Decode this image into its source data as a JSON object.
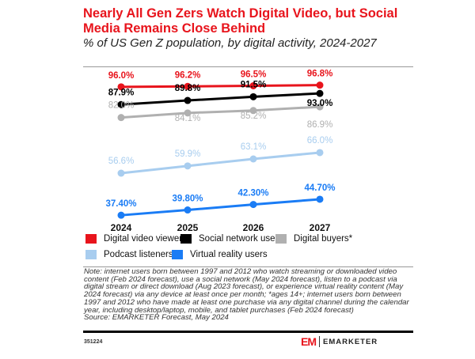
{
  "title": "Nearly All Gen Zers Watch Digital Video, but Social Media Remains Close Behind",
  "subtitle": "% of US Gen Z population, by digital activity, 2024-2027",
  "chart_data": {
    "type": "line",
    "categories": [
      "2024",
      "2025",
      "2026",
      "2027"
    ],
    "series": [
      {
        "name": "Digital video viewers",
        "color": "#e8141c",
        "values": [
          96.0,
          96.2,
          96.5,
          96.8
        ],
        "labels": [
          "96.0%",
          "96.2%",
          "96.5%",
          "96.8%"
        ]
      },
      {
        "name": "Social network users",
        "color": "#000000",
        "values": [
          87.9,
          89.8,
          91.5,
          93.0
        ],
        "labels": [
          "87.9%",
          "89.8%",
          "91.5%",
          "93.0%"
        ]
      },
      {
        "name": "Digital buyers*",
        "color": "#b0b0b0",
        "values": [
          82.0,
          84.1,
          85.2,
          86.9
        ],
        "labels": [
          "82.0%",
          "84.1%",
          "85.2%",
          "86.9%"
        ]
      },
      {
        "name": "Podcast listeners",
        "color": "#a8cdef",
        "values": [
          56.6,
          59.9,
          63.1,
          66.0
        ],
        "labels": [
          "56.6%",
          "59.9%",
          "63.1%",
          "66.0%"
        ]
      },
      {
        "name": "Virtual reality users",
        "color": "#1a7cf5",
        "values": [
          37.4,
          39.8,
          42.3,
          44.7
        ],
        "labels": [
          "37.40%",
          "39.80%",
          "42.30%",
          "44.70%"
        ]
      }
    ],
    "legend_position": "bottom",
    "grid": false
  },
  "note": "Note: internet users born between 1997 and 2012 who watch streaming or downloaded video content (Feb 2024 forecast), use a social network (May 2024 forecast), listen to a podcast via digital stream or direct download (Aug 2023 forecast), or experience virtual reality content (May 2024 forecast) via any device at least once per month; *ages 14+; internet users born between 1997 and 2012 who have made at least one purchase via any digital channel during the calendar year, including desktop/laptop, mobile, and tablet purchases (Feb 2024 forecast)",
  "source": "Source: EMARKETER Forecast, May 2024",
  "chart_code": "351224",
  "brand": "EMARKETER",
  "brand_mark": "EM"
}
